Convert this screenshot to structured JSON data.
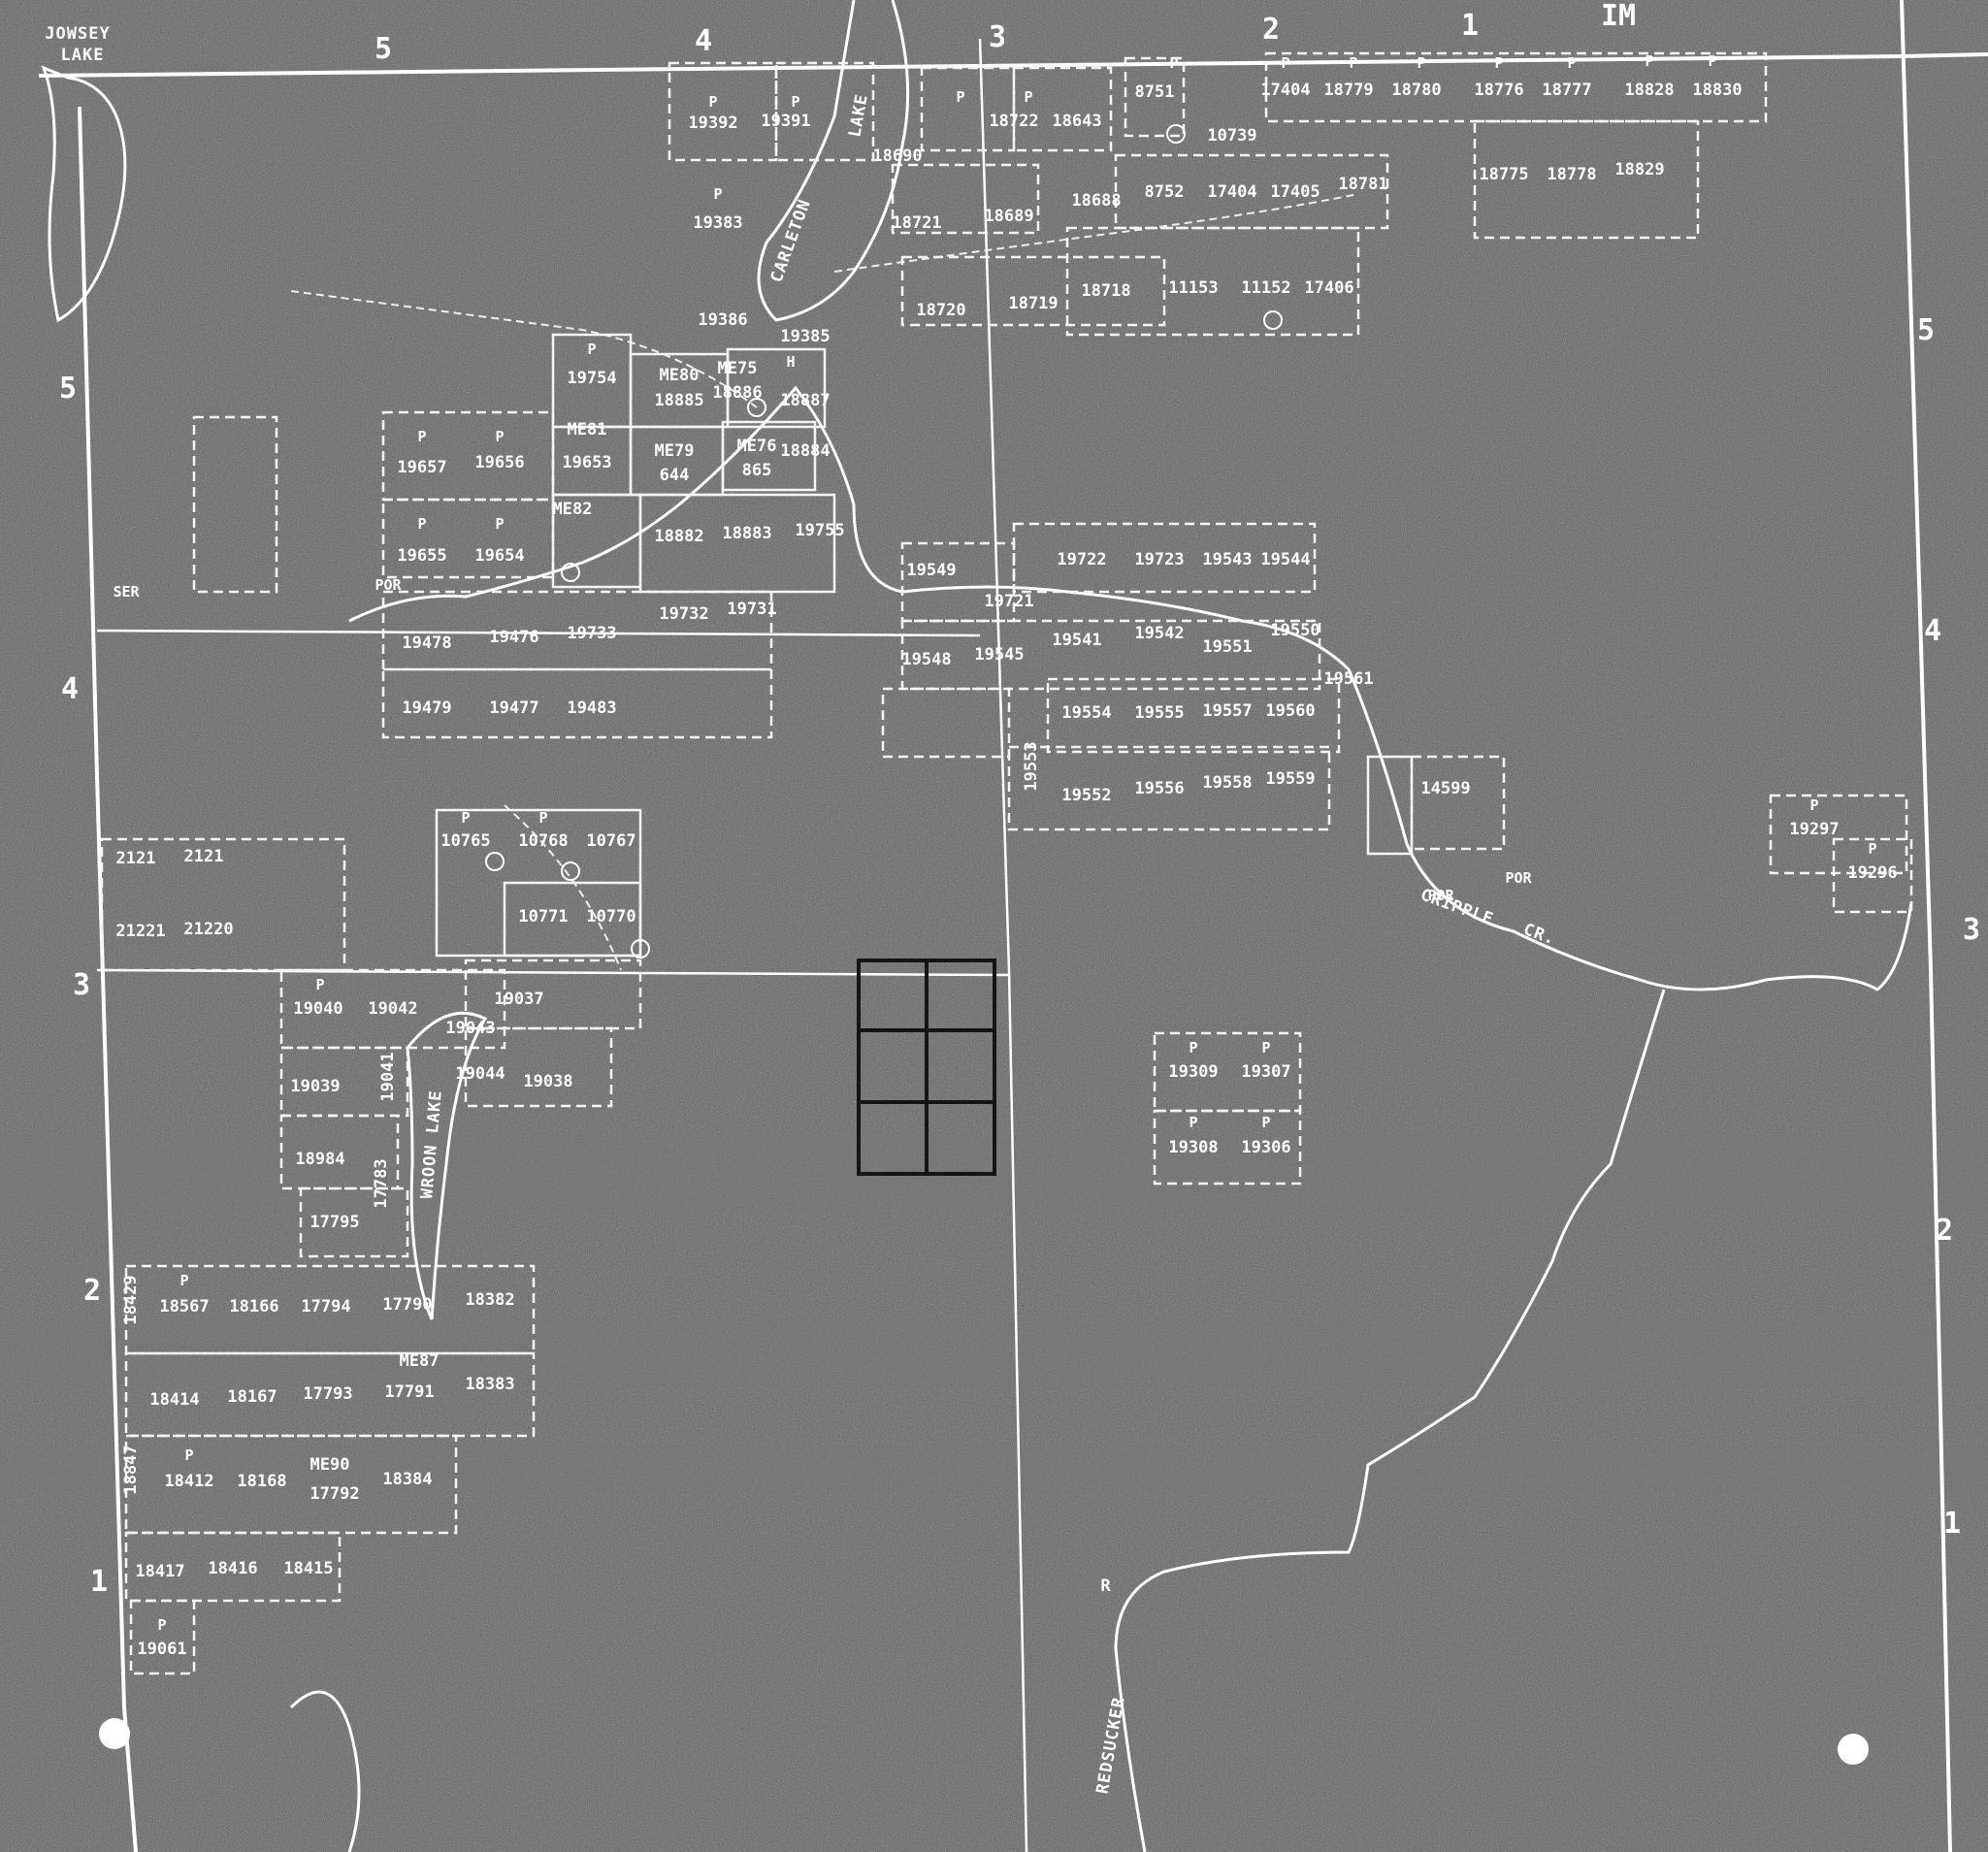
{
  "edge_numbers": [
    "5",
    "4",
    "3",
    "2",
    "1",
    "IM",
    "5",
    "4",
    "3",
    "2",
    "1",
    "5",
    "4",
    "3",
    "2",
    "1"
  ],
  "lake_names": [
    "JOWSEY",
    "LAKE",
    "CARLETON",
    "LAKE",
    "WROON LAKE"
  ],
  "river_names": [
    "CRIPPLE",
    "CR.",
    "REDSUCKER",
    "R"
  ],
  "claim_numbers_top": [
    "19392",
    "19391",
    "18722",
    "18643",
    "8751",
    "17404",
    "18779",
    "18780",
    "18776",
    "18777",
    "18828",
    "18830",
    "18690",
    "10739",
    "18775",
    "18778",
    "18829",
    "19383",
    "18721",
    "18689",
    "18688",
    "8752",
    "17404",
    "17405",
    "18781",
    "18720",
    "18719",
    "18718",
    "11153",
    "11152",
    "17406",
    "19386",
    "19385",
    "19754",
    "18885",
    "18886",
    "18887",
    "18884",
    "19657",
    "19656",
    "19653",
    "644",
    "865",
    "19655",
    "19654",
    "18882",
    "18883",
    "19755"
  ],
  "claim_numbers_mid": [
    "19549",
    "19722",
    "19723",
    "19543",
    "19544",
    "19721",
    "19478",
    "19476",
    "19733",
    "19732",
    "19731",
    "19548",
    "19545",
    "19541",
    "19542",
    "19551",
    "19550",
    "19479",
    "19477",
    "19483",
    "19554",
    "19555",
    "19557",
    "19560",
    "19561",
    "19553",
    "19552",
    "19556",
    "19558",
    "19559",
    "14599",
    "19297",
    "19296"
  ],
  "claim_numbers_low": [
    "10765",
    "10768",
    "10767",
    "10771",
    "10770",
    "2121",
    "2121",
    "21221",
    "21220",
    "19040",
    "19042",
    "19037",
    "19041",
    "19043",
    "19039",
    "19044",
    "19038",
    "18984",
    "17783",
    "17795",
    "19309",
    "19307",
    "19308",
    "19306"
  ],
  "claim_numbers_bottom": [
    "18429",
    "18567",
    "18166",
    "17794",
    "17790",
    "18382",
    "18414",
    "18167",
    "17793",
    "17791",
    "18383",
    "18847",
    "18412",
    "18168",
    "17792",
    "18384",
    "18417",
    "18416",
    "18415",
    "19061"
  ],
  "mining_claim_codes": [
    "ME80",
    "ME75",
    "ME81",
    "ME79",
    "ME76",
    "ME82",
    "ME87",
    "ME90"
  ],
  "patent_mark": "P",
  "abbreviations": [
    "POR",
    "POR",
    "POR",
    "SER",
    "H"
  ]
}
